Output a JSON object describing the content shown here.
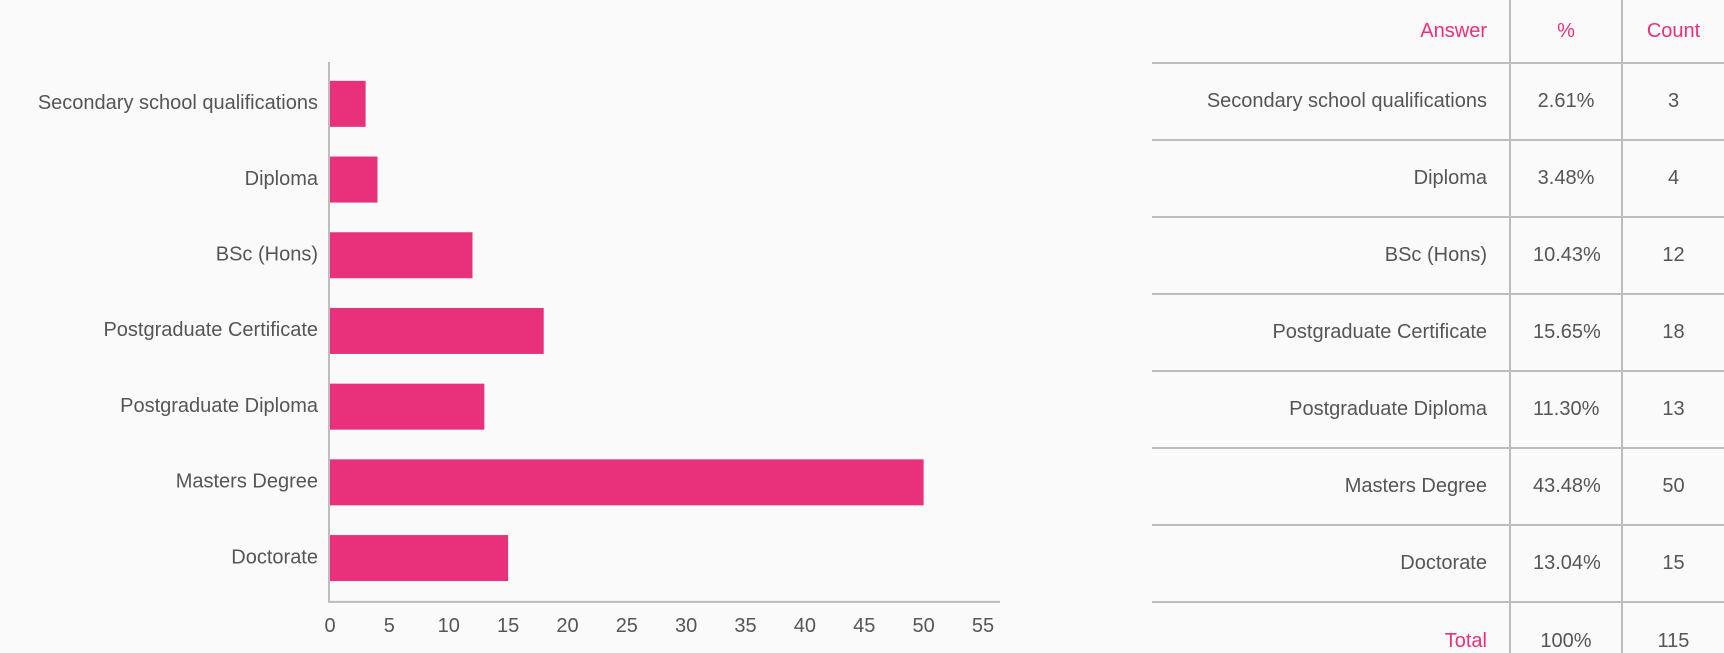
{
  "chart_data": {
    "type": "bar",
    "orientation": "horizontal",
    "categories": [
      "Secondary school qualifications",
      "Diploma",
      "BSc (Hons)",
      "Postgraduate Certificate",
      "Postgraduate Diploma",
      "Masters Degree",
      "Doctorate"
    ],
    "values": [
      3,
      4,
      12,
      18,
      13,
      50,
      15
    ],
    "xlim": [
      0,
      55
    ],
    "xticks": [
      0,
      5,
      10,
      15,
      20,
      25,
      30,
      35,
      40,
      45,
      50,
      55
    ],
    "bar_color": "#e8317a",
    "grid": false,
    "legend": "none"
  },
  "table": {
    "headers": {
      "answer": "Answer",
      "percent": "%",
      "count": "Count"
    },
    "rows": [
      {
        "answer": "Secondary school qualifications",
        "percent": "2.61%",
        "count": "3"
      },
      {
        "answer": "Diploma",
        "percent": "3.48%",
        "count": "4"
      },
      {
        "answer": "BSc (Hons)",
        "percent": "10.43%",
        "count": "12"
      },
      {
        "answer": "Postgraduate Certificate",
        "percent": "15.65%",
        "count": "18"
      },
      {
        "answer": "Postgraduate Diploma",
        "percent": "11.30%",
        "count": "13"
      },
      {
        "answer": "Masters Degree",
        "percent": "43.48%",
        "count": "50"
      },
      {
        "answer": "Doctorate",
        "percent": "13.04%",
        "count": "15"
      }
    ],
    "total": {
      "label": "Total",
      "percent": "100%",
      "count": "115"
    },
    "accent_color": "#e8317a"
  }
}
